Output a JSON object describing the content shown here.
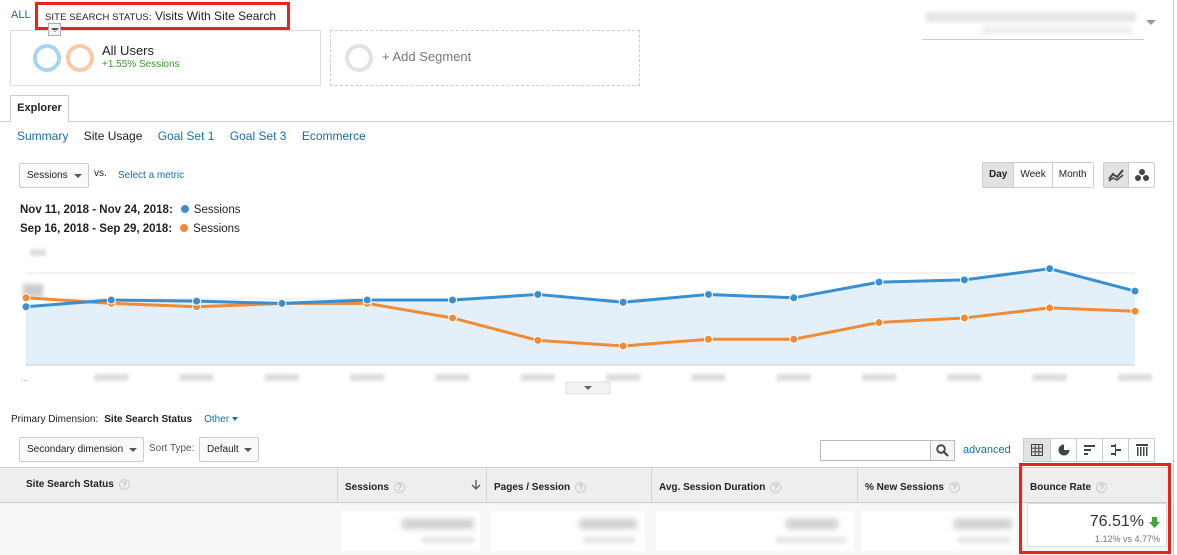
{
  "segments": {
    "all_link": "ALL",
    "filter_caption": "SITE SEARCH STATUS:",
    "filter_value": "Visits With Site Search",
    "all_users_title": "All Users",
    "all_users_sub": "+1.55% Sessions",
    "add_segment": "+ Add Segment"
  },
  "explorer": {
    "tab": "Explorer",
    "subtabs": [
      "Summary",
      "Site Usage",
      "Goal Set 1",
      "Goal Set 3",
      "Ecommerce"
    ],
    "active_subtab": "Site Usage"
  },
  "controls": {
    "metric": "Sessions",
    "vs": "vs.",
    "select_metric": "Select a metric",
    "time_buttons": [
      "Day",
      "Week",
      "Month"
    ],
    "active_time": "Day"
  },
  "legend": [
    {
      "range": "Nov 11, 2018 - Nov 24, 2018:",
      "metric": "Sessions",
      "color": "#3a8fd0"
    },
    {
      "range": "Sep 16, 2018 - Sep 29, 2018:",
      "metric": "Sessions",
      "color": "#f08a34"
    }
  ],
  "chart_data": {
    "type": "line",
    "x_index": [
      0,
      1,
      2,
      3,
      4,
      5,
      6,
      7,
      8,
      9,
      10,
      11,
      12,
      13
    ],
    "series": [
      {
        "name": "Nov 11, 2018 - Nov 24, 2018",
        "color": "#3a8fd0",
        "values": [
          0.52,
          0.58,
          0.57,
          0.55,
          0.58,
          0.58,
          0.63,
          0.56,
          0.63,
          0.6,
          0.74,
          0.76,
          0.86,
          0.66
        ]
      },
      {
        "name": "Sep 16, 2018 - Sep 29, 2018",
        "color": "#f08a34",
        "values": [
          0.6,
          0.55,
          0.52,
          0.55,
          0.55,
          0.42,
          0.22,
          0.17,
          0.23,
          0.23,
          0.38,
          0.42,
          0.51,
          0.48
        ]
      }
    ],
    "ylim": [
      0,
      1
    ]
  },
  "table": {
    "primary_dim_label": "Primary Dimension:",
    "primary_dim_value": "Site Search Status",
    "other": "Other",
    "secondary_dim": "Secondary dimension",
    "sort_type_label": "Sort Type:",
    "sort_type": "Default",
    "advanced": "advanced",
    "columns": [
      "Site Search Status",
      "Sessions",
      "Pages / Session",
      "Avg. Session Duration",
      "% New Sessions",
      "Bounce Rate"
    ],
    "bounce_rate": "76.51%",
    "bounce_compare": "1.12% vs 4.77%",
    "help_glyph": "?"
  }
}
